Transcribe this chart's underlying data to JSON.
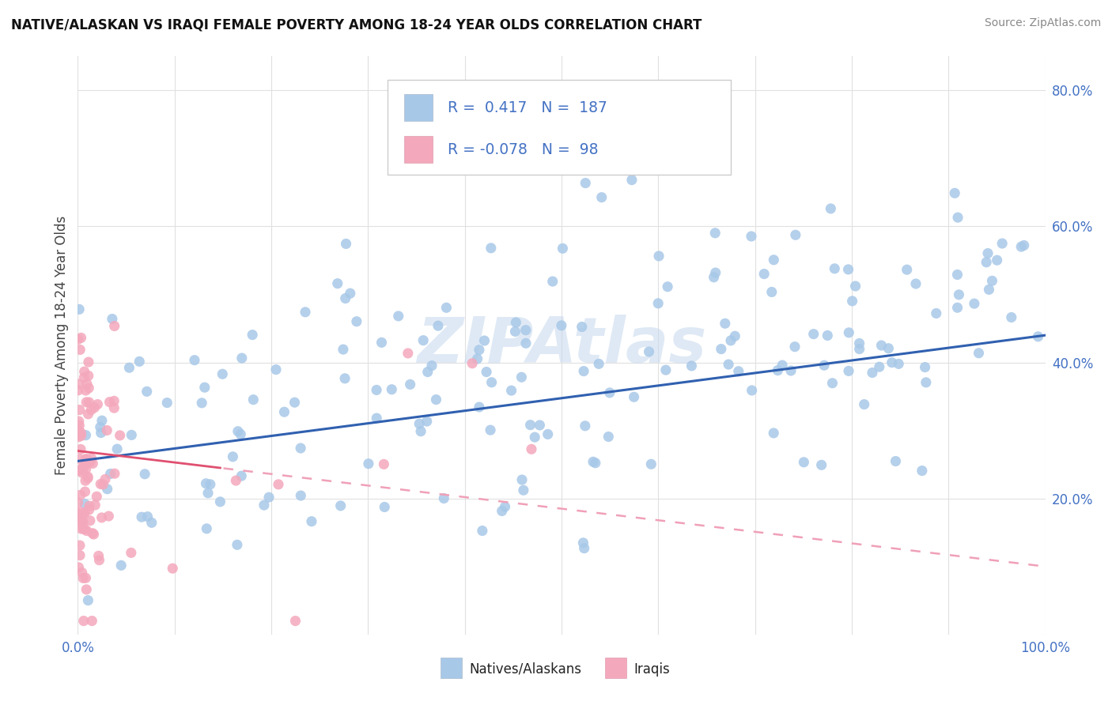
{
  "title": "NATIVE/ALASKAN VS IRAQI FEMALE POVERTY AMONG 18-24 YEAR OLDS CORRELATION CHART",
  "source": "Source: ZipAtlas.com",
  "ylabel": "Female Poverty Among 18-24 Year Olds",
  "xlim": [
    0.0,
    1.0
  ],
  "ylim": [
    0.0,
    0.85
  ],
  "xtick_positions": [
    0.0,
    0.1,
    0.2,
    0.3,
    0.4,
    0.5,
    0.6,
    0.7,
    0.8,
    0.9,
    1.0
  ],
  "xticklabels": [
    "0.0%",
    "",
    "",
    "",
    "",
    "",
    "",
    "",
    "",
    "",
    "100.0%"
  ],
  "ytick_positions": [
    0.0,
    0.2,
    0.4,
    0.6,
    0.8
  ],
  "yticklabels": [
    "",
    "20.0%",
    "40.0%",
    "60.0%",
    "80.0%"
  ],
  "native_R": 0.417,
  "native_N": 187,
  "iraqi_R": -0.078,
  "iraqi_N": 98,
  "native_color": "#a8c8e8",
  "iraqi_color": "#f4a8bc",
  "native_line_color": "#3060b0",
  "iraqi_line_solid_color": "#e05070",
  "iraqi_line_dash_color": "#f0a0b8",
  "watermark": "ZIPAtlas",
  "watermark_color": "#c5d8ed",
  "background_color": "#ffffff",
  "legend_label_native": "Natives/Alaskans",
  "legend_label_iraqi": "Iraqis",
  "grid_color": "#e0e0e0",
  "tick_label_color": "#4472c4",
  "ylabel_color": "#444444",
  "title_color": "#111111",
  "source_color": "#888888",
  "legend_text_color": "#222222",
  "legend_value_color": "#4472c4"
}
